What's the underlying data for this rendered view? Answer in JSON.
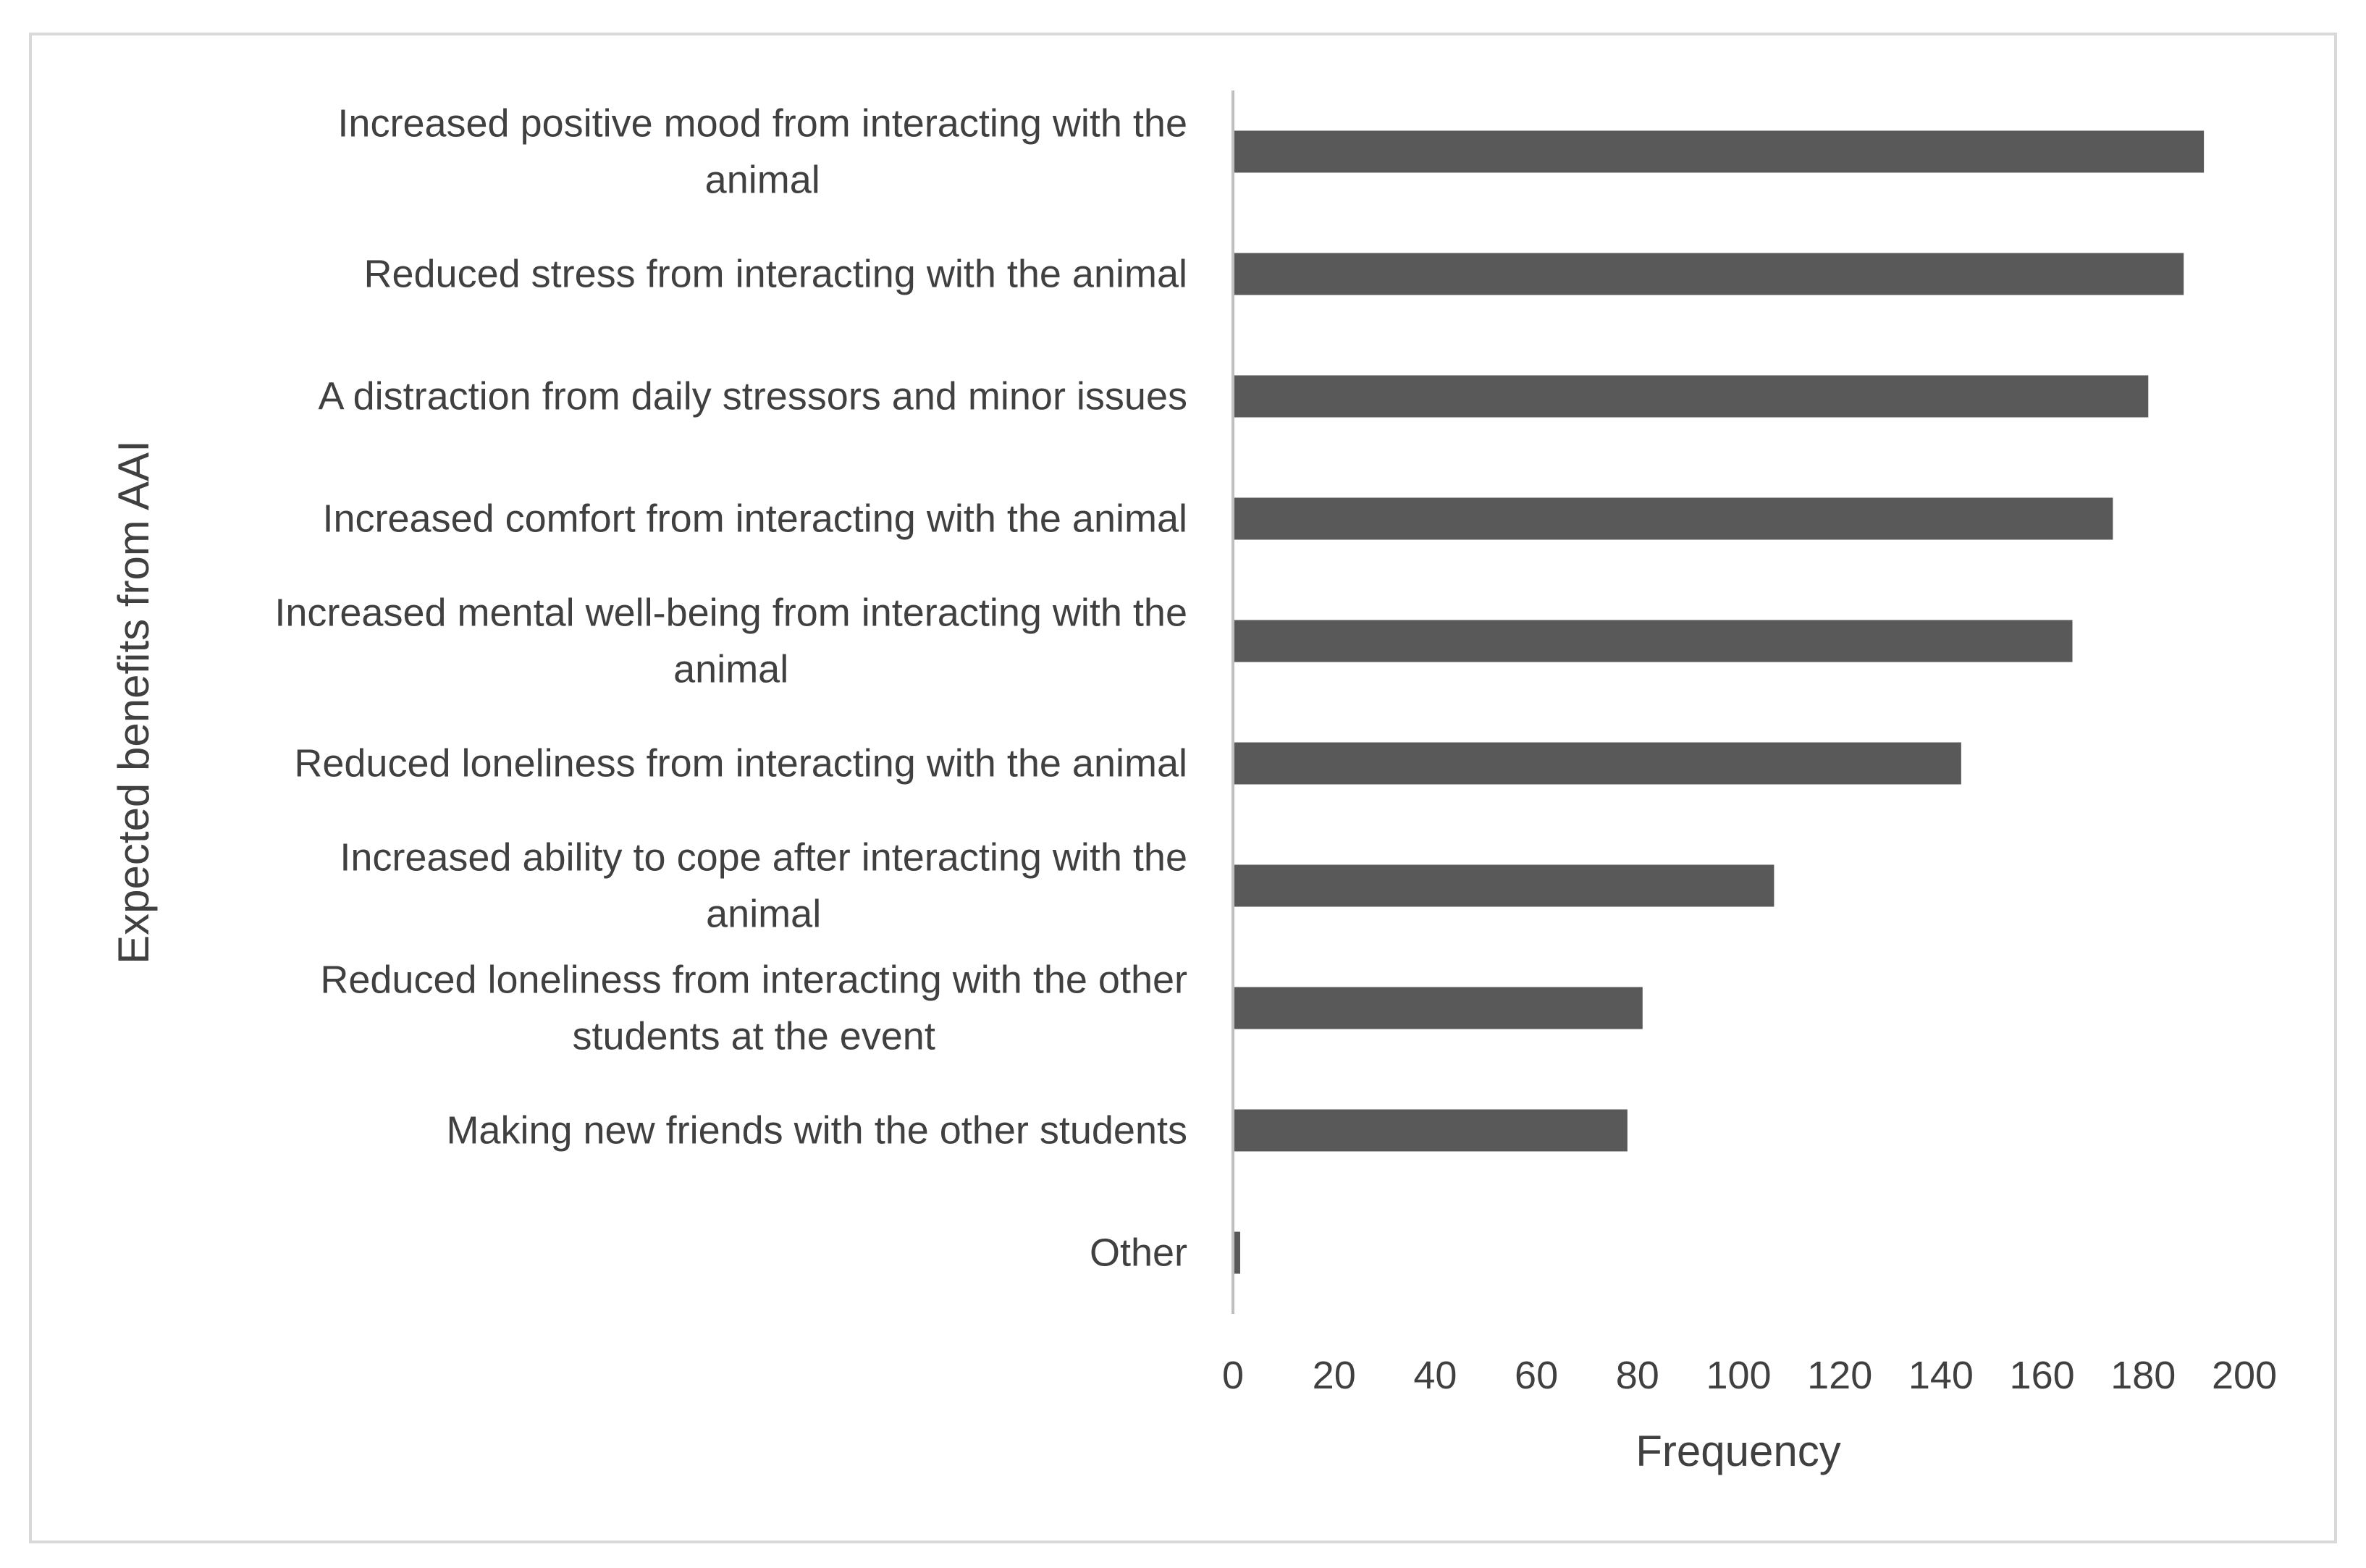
{
  "chart_data": {
    "type": "bar",
    "orientation": "horizontal",
    "categories": [
      [
        "Increased positive mood from interacting with the",
        "animal"
      ],
      [
        "Reduced stress from interacting with the animal"
      ],
      [
        "A distraction from daily stressors and minor issues"
      ],
      [
        "Increased comfort from interacting with the animal"
      ],
      [
        "Increased mental well-being from interacting with the",
        "animal"
      ],
      [
        "Reduced loneliness from interacting with the animal"
      ],
      [
        "Increased ability to cope after interacting with the",
        "animal"
      ],
      [
        "Reduced loneliness from interacting with the other",
        "students at the event"
      ],
      [
        "Making new friends with the other students"
      ],
      [
        "Other"
      ]
    ],
    "values": [
      192,
      188,
      181,
      174,
      166,
      144,
      107,
      81,
      78,
      1
    ],
    "xlabel": "Frequency",
    "ylabel": "Expected benefits from AAI",
    "xlim": [
      0,
      200
    ],
    "xticks": [
      "0",
      "20",
      "40",
      "60",
      "80",
      "100",
      "120",
      "140",
      "160",
      "180",
      "200"
    ],
    "grid": false,
    "legend": "none",
    "bar_color": "#595959",
    "axis_color": "#bfbfbf",
    "text_color": "#404040"
  }
}
